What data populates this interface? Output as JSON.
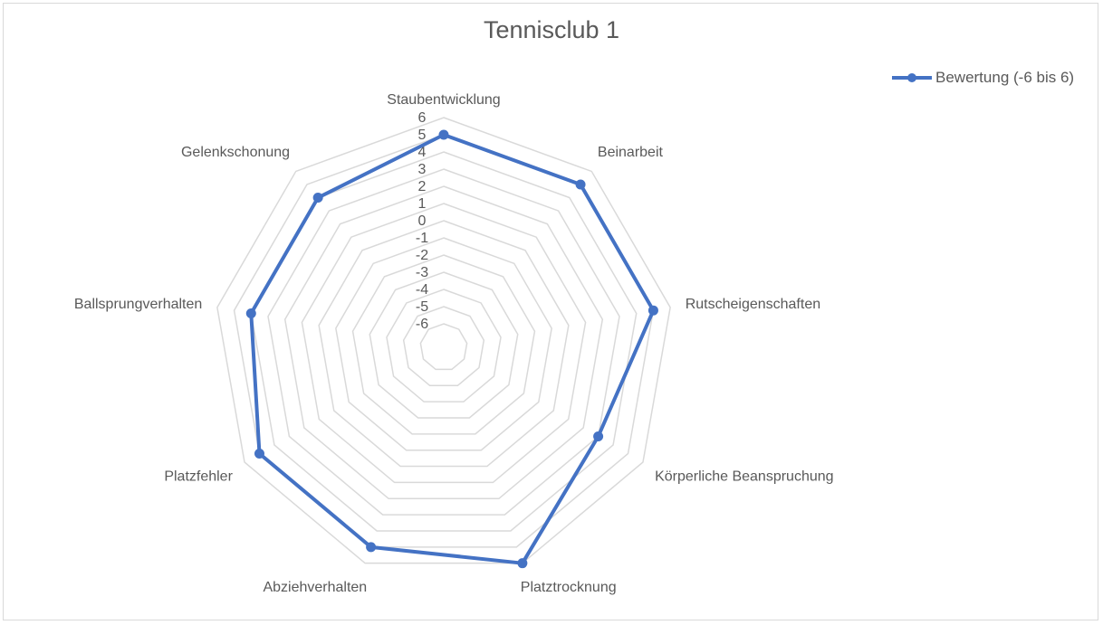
{
  "chart_data": {
    "type": "radar",
    "title": "Tennisclub 1",
    "categories": [
      "Staubentwicklung",
      "Beinarbeit",
      "Rutscheigenschaften",
      "Körperliche Beanspruchung",
      "Platztrocknung",
      "Abziehverhalten",
      "Platzfehler",
      "Ballsprungverhalten",
      "Gelenkschonung"
    ],
    "series": [
      {
        "name": "Bewertung (-6 bis 6)",
        "values": [
          5,
          5,
          5,
          3,
          6,
          5,
          5,
          4,
          4
        ],
        "color": "#4472c4"
      }
    ],
    "rlim": [
      -6,
      6
    ],
    "ticks": [
      "-6",
      "-5",
      "-4",
      "-3",
      "-2",
      "-1",
      "0",
      "1",
      "2",
      "3",
      "4",
      "5",
      "6"
    ],
    "legend_position": "top-right",
    "grid": true,
    "grid_color": "#d9d9d9"
  }
}
